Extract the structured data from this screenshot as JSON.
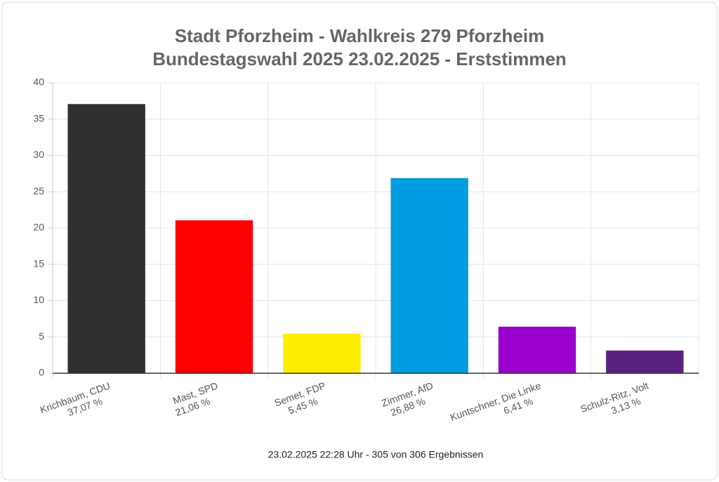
{
  "chart_data": {
    "type": "bar",
    "title": [
      "Stadt Pforzheim - Wahlkreis 279 Pforzheim",
      "Bundestagswahl 2025 23.02.2025  - Erststimmen"
    ],
    "categories": [
      "Krichbaum, CDU",
      "Mast, SPD",
      "Semet, FDP",
      "Zimmer, AfD",
      "Kuntschner, Die Linke",
      "Schulz-Ritz, Volt"
    ],
    "values": [
      37.07,
      21.06,
      5.45,
      26.88,
      6.41,
      3.13
    ],
    "value_labels": [
      "37,07 %",
      "21,06 %",
      "5,45 %",
      "26,88 %",
      "6,41 %",
      "3,13 %"
    ],
    "colors": [
      "#32302f",
      "#ff0000",
      "#ffed00",
      "#009ee0",
      "#9900cc",
      "#5b2182"
    ],
    "ylim": [
      0,
      40
    ],
    "yticks": [
      0,
      5,
      10,
      15,
      20,
      25,
      30,
      35,
      40
    ],
    "grid": true,
    "caption": "23.02.2025 22:28 Uhr - 305 von 306 Ergebnissen"
  }
}
